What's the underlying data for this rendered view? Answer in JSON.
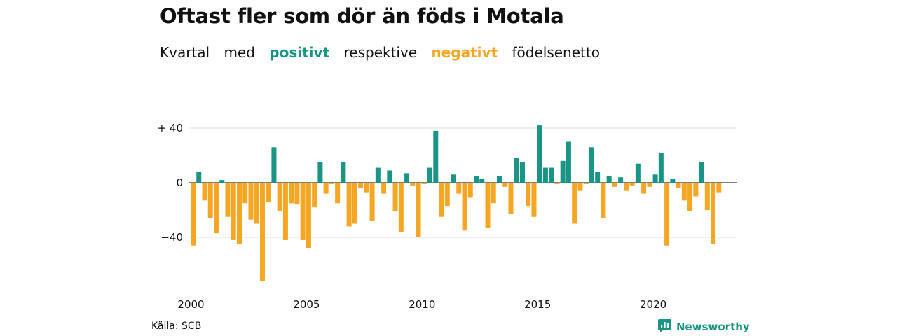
{
  "title": "Oftast fler som dör än föds i Motala",
  "subtitle": {
    "part1": "Kvartal",
    "part2": "med",
    "positive": "positivt",
    "part3": "respektive",
    "negative": "negativt",
    "part4": "födelsenetto"
  },
  "colors": {
    "positive": "#1a9585",
    "negative": "#f5a623",
    "grid": "#dddddd",
    "text": "#111111"
  },
  "source": "Källa: SCB",
  "brand": {
    "name": "Newsworthy",
    "icon": "newsworthy-logo-icon"
  },
  "chart_data": {
    "type": "bar",
    "x_start": 2000.0,
    "x_step": 0.25,
    "x_ticks": [
      2000,
      2005,
      2010,
      2015,
      2020
    ],
    "x_tick_labels": [
      "2000",
      "2005",
      "2010",
      "2015",
      "2020"
    ],
    "y_ticks": [
      40,
      0,
      -40
    ],
    "y_tick_labels": [
      "+ 40",
      "0",
      "−40"
    ],
    "ylim": [
      -72,
      42
    ],
    "grid": true,
    "values": [
      -46,
      8,
      -13,
      -26,
      -37,
      2,
      -25,
      -42,
      -45,
      -15,
      -27,
      -30,
      -72,
      -14,
      26,
      -21,
      -42,
      -15,
      -16,
      -42,
      -48,
      -18,
      15,
      -8,
      -1,
      -15,
      15,
      -32,
      -30,
      -4,
      -7,
      -28,
      11,
      -8,
      9,
      -21,
      -36,
      7,
      -2,
      -40,
      -1,
      11,
      38,
      -25,
      -17,
      6,
      -8,
      -35,
      -11,
      5,
      3,
      -33,
      -15,
      5,
      -3,
      -23,
      18,
      15,
      -17,
      -25,
      42,
      11,
      11,
      -1,
      16,
      30,
      -30,
      -6,
      -1,
      26,
      8,
      -26,
      5,
      -3,
      4,
      -6,
      -2,
      14,
      -8,
      -3,
      6,
      22,
      -46,
      3,
      -4,
      -13,
      -21,
      -10,
      15,
      -20,
      -45,
      -7
    ]
  }
}
